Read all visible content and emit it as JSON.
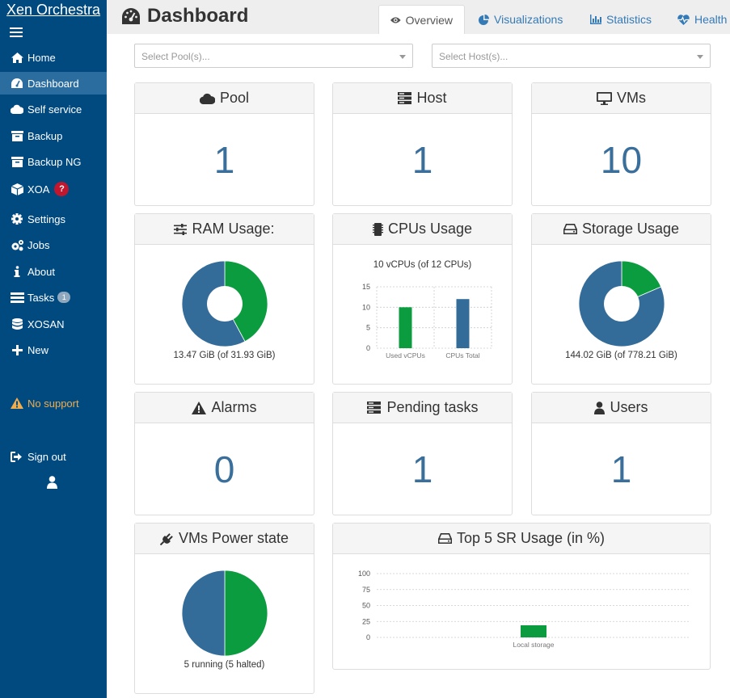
{
  "sidebar": {
    "brand": "Xen Orchestra",
    "items": [
      {
        "label": "Home"
      },
      {
        "label": "Dashboard"
      },
      {
        "label": "Self service"
      },
      {
        "label": "Backup"
      },
      {
        "label": "Backup NG"
      },
      {
        "label": "XOA",
        "badge": "?"
      },
      {
        "label": "Settings"
      },
      {
        "label": "Jobs"
      },
      {
        "label": "About"
      },
      {
        "label": "Tasks",
        "badge": "1"
      },
      {
        "label": "XOSAN"
      },
      {
        "label": "New"
      }
    ],
    "support": "No support",
    "signout": "Sign out"
  },
  "header": {
    "title": "Dashboard",
    "tabs": [
      "Overview",
      "Visualizations",
      "Statistics",
      "Health"
    ]
  },
  "filters": {
    "pool_placeholder": "Select Pool(s)...",
    "host_placeholder": "Select Host(s)..."
  },
  "cards": {
    "pool": {
      "title": "Pool",
      "value": "1"
    },
    "host": {
      "title": "Host",
      "value": "1"
    },
    "vms": {
      "title": "VMs",
      "value": "10"
    },
    "ram": {
      "title": "RAM Usage:",
      "caption": "13.47 GiB (of 31.93 GiB)",
      "used": 13.47,
      "total": 31.93
    },
    "cpus": {
      "title": "CPUs Usage",
      "caption": "10 vCPUs (of 12 CPUs)"
    },
    "storage": {
      "title": "Storage Usage",
      "caption": "144.02 GiB (of 778.21 GiB)",
      "used": 144.02,
      "total": 778.21
    },
    "alarms": {
      "title": "Alarms",
      "value": "0"
    },
    "pending": {
      "title": "Pending tasks",
      "value": "1"
    },
    "users": {
      "title": "Users",
      "value": "1"
    },
    "power": {
      "title": "VMs Power state",
      "caption": "5 running (5 halted)",
      "running": 5,
      "halted": 5
    },
    "topsr": {
      "title": "Top 5 SR Usage (in %)"
    }
  },
  "colors": {
    "sidebar": "#004a80",
    "blue": "#336b99",
    "green": "#0a9c3e",
    "accent": "#337ab7"
  },
  "chart_data": [
    {
      "type": "bar",
      "categories": [
        "Used vCPUs",
        "CPUs Total"
      ],
      "values": [
        10,
        12
      ],
      "ylim": [
        0,
        15
      ],
      "yticks": [
        "15",
        "10",
        "5",
        "0"
      ],
      "grid": true
    },
    {
      "type": "bar",
      "categories": [
        "Local storage"
      ],
      "values": [
        19
      ],
      "ylim": [
        0,
        100
      ],
      "yticks": [
        "100",
        "75",
        "50",
        "25",
        "0"
      ],
      "grid": true
    }
  ]
}
